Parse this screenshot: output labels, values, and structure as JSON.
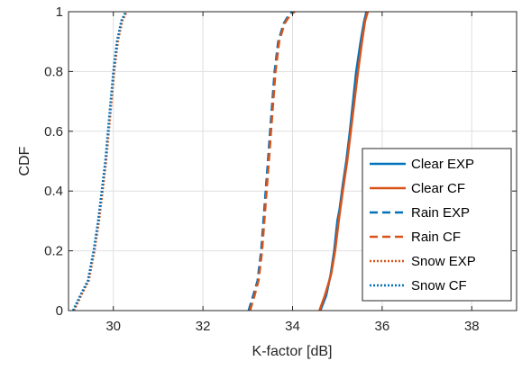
{
  "chart_data": {
    "type": "line",
    "title": "",
    "xlabel": "K-factor [dB]",
    "ylabel": "CDF",
    "xlim": [
      29,
      39
    ],
    "ylim": [
      0,
      1
    ],
    "xticks": [
      30,
      32,
      34,
      36,
      38
    ],
    "yticks": [
      0,
      0.2,
      0.4,
      0.6,
      0.8,
      1
    ],
    "xtick_labels": [
      "30",
      "32",
      "34",
      "36",
      "38"
    ],
    "ytick_labels": [
      "0",
      "0.2",
      "0.4",
      "0.6",
      "0.8",
      "1"
    ],
    "grid": true,
    "legend_position": "bottom-right",
    "series": [
      {
        "name": "Clear EXP",
        "color": "#0072BD",
        "style": "solid",
        "x": [
          34.62,
          34.75,
          34.85,
          34.93,
          35.0,
          35.05,
          35.12,
          35.2,
          35.28,
          35.35,
          35.42,
          35.52,
          35.6,
          35.65
        ],
        "y": [
          0,
          0.05,
          0.12,
          0.2,
          0.3,
          0.34,
          0.42,
          0.5,
          0.6,
          0.7,
          0.8,
          0.9,
          0.97,
          1.0
        ]
      },
      {
        "name": "Clear CF",
        "color": "#D95319",
        "style": "solid",
        "x": [
          34.6,
          34.72,
          34.86,
          34.95,
          35.03,
          35.12,
          35.22,
          35.3,
          35.38,
          35.46,
          35.55,
          35.62,
          35.68
        ],
        "y": [
          0,
          0.05,
          0.12,
          0.2,
          0.3,
          0.4,
          0.5,
          0.6,
          0.7,
          0.8,
          0.9,
          0.97,
          1.0
        ]
      },
      {
        "name": "Rain EXP",
        "color": "#0072BD",
        "style": "dashed",
        "x": [
          33.02,
          33.12,
          33.22,
          33.3,
          33.35,
          33.4,
          33.45,
          33.5,
          33.55,
          33.6,
          33.68,
          33.8,
          33.92,
          34.0
        ],
        "y": [
          0,
          0.05,
          0.1,
          0.2,
          0.3,
          0.4,
          0.5,
          0.6,
          0.7,
          0.8,
          0.9,
          0.96,
          0.99,
          1.0
        ]
      },
      {
        "name": "Rain CF",
        "color": "#D95319",
        "style": "dashed",
        "x": [
          33.05,
          33.15,
          33.24,
          33.32,
          33.37,
          33.42,
          33.47,
          33.52,
          33.57,
          33.62,
          33.7,
          33.82,
          33.95,
          34.05
        ],
        "y": [
          0,
          0.05,
          0.1,
          0.2,
          0.3,
          0.4,
          0.5,
          0.6,
          0.7,
          0.8,
          0.9,
          0.96,
          0.99,
          1.0
        ]
      },
      {
        "name": "Snow EXP",
        "color": "#D95319",
        "style": "dotted",
        "x": [
          29.12,
          29.28,
          29.45,
          29.58,
          29.68,
          29.76,
          29.84,
          29.9,
          29.96,
          30.02,
          30.1,
          30.2,
          30.3
        ],
        "y": [
          0,
          0.05,
          0.1,
          0.2,
          0.3,
          0.4,
          0.5,
          0.6,
          0.7,
          0.8,
          0.9,
          0.97,
          1.0
        ]
      },
      {
        "name": "Snow CF",
        "color": "#0072BD",
        "style": "dotted",
        "x": [
          29.1,
          29.26,
          29.43,
          29.56,
          29.66,
          29.74,
          29.82,
          29.88,
          29.94,
          30.0,
          30.08,
          30.18,
          30.28
        ],
        "y": [
          0,
          0.05,
          0.1,
          0.2,
          0.3,
          0.4,
          0.5,
          0.6,
          0.7,
          0.8,
          0.9,
          0.97,
          1.0
        ]
      }
    ]
  }
}
